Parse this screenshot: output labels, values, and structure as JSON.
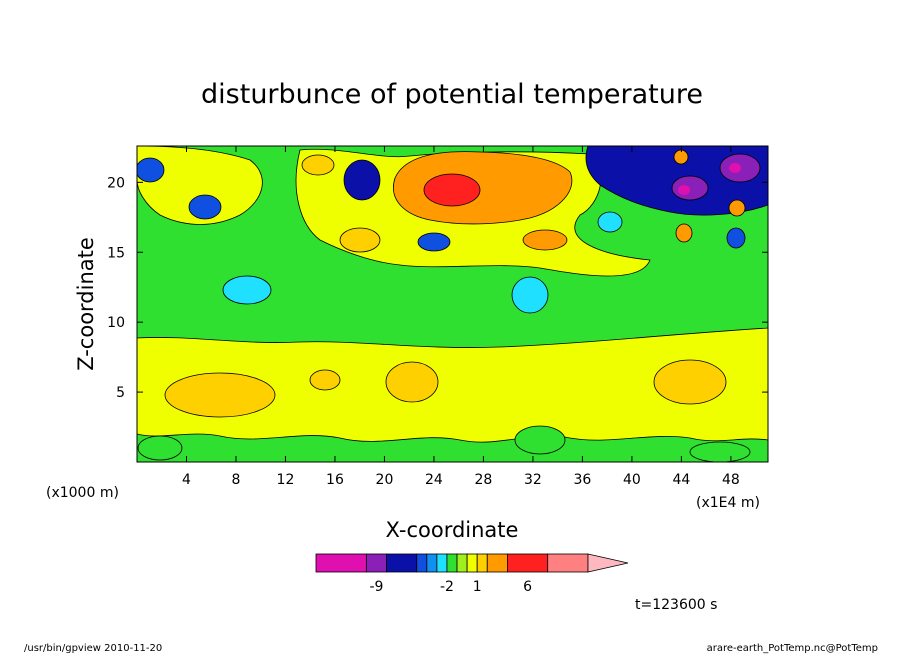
{
  "chart_data": {
    "type": "heatmap",
    "title": "disturbunce of potential temperature",
    "xlabel": "X-coordinate",
    "ylabel": "Z-coordinate",
    "x_unit": "(x1E4 m)",
    "y_unit": "(x1000 m)",
    "xlim": [
      0,
      51
    ],
    "ylim": [
      0,
      22.6
    ],
    "x_ticks": [
      4,
      8,
      12,
      16,
      20,
      24,
      28,
      32,
      36,
      40,
      44,
      48
    ],
    "y_ticks": [
      5,
      10,
      15,
      20
    ],
    "time_label": "t=123600 s",
    "colorbar": {
      "tick_labels": [
        "-9",
        "-2",
        "1",
        "6"
      ],
      "tick_values": [
        -9,
        -2,
        1,
        6
      ],
      "bins": [
        {
          "lo": -15,
          "hi": -10,
          "color": "#e010b0"
        },
        {
          "lo": -10,
          "hi": -8,
          "color": "#8a20b8"
        },
        {
          "lo": -8,
          "hi": -5,
          "color": "#0a10a8"
        },
        {
          "lo": -5,
          "hi": -4,
          "color": "#1050e0"
        },
        {
          "lo": -4,
          "hi": -3,
          "color": "#1090f0"
        },
        {
          "lo": -3,
          "hi": -2,
          "color": "#20e0ff"
        },
        {
          "lo": -2,
          "hi": -1,
          "color": "#30e030"
        },
        {
          "lo": -1,
          "hi": 0,
          "color": "#a0f020"
        },
        {
          "lo": 0,
          "hi": 1,
          "color": "#f0ff00"
        },
        {
          "lo": 1,
          "hi": 2,
          "color": "#ffd000"
        },
        {
          "lo": 2,
          "hi": 4,
          "color": "#ff9a00"
        },
        {
          "lo": 4,
          "hi": 8,
          "color": "#ff2020"
        },
        {
          "lo": 8,
          "hi": 12,
          "color": "#ff8080"
        },
        {
          "lo": 12,
          "hi": 16,
          "color": "#ffb8c0"
        }
      ]
    },
    "features": [
      {
        "x": 25,
        "z": 20.5,
        "value": 5.5
      },
      {
        "x": 20,
        "z": 18.5,
        "value": -2.5
      },
      {
        "x": 18,
        "z": 20,
        "value": -6
      },
      {
        "x": 6,
        "z": 19,
        "value": -4.5
      },
      {
        "x": 2,
        "z": 21,
        "value": -3.5
      },
      {
        "x": 44,
        "z": 20,
        "value": -9
      },
      {
        "x": 48,
        "z": 21,
        "value": -10
      },
      {
        "x": 47,
        "z": 18.5,
        "value": 3
      },
      {
        "x": 44,
        "z": 16.5,
        "value": 2.5
      },
      {
        "x": 39,
        "z": 17,
        "value": -3
      },
      {
        "x": 32.5,
        "z": 15.5,
        "value": 2
      },
      {
        "x": 31,
        "z": 12,
        "value": -3
      },
      {
        "x": 23,
        "z": 15.5,
        "value": -4
      },
      {
        "x": 10,
        "z": 12.5,
        "value": -3
      },
      {
        "x": 6,
        "z": 5,
        "value": 2.2
      },
      {
        "x": 22,
        "z": 5.5,
        "value": 2
      },
      {
        "x": 44,
        "z": 6,
        "value": 2.2
      }
    ]
  },
  "footer": {
    "left": "/usr/bin/gpview 2010-11-20",
    "right": "arare-earth_PotTemp.nc@PotTemp"
  }
}
